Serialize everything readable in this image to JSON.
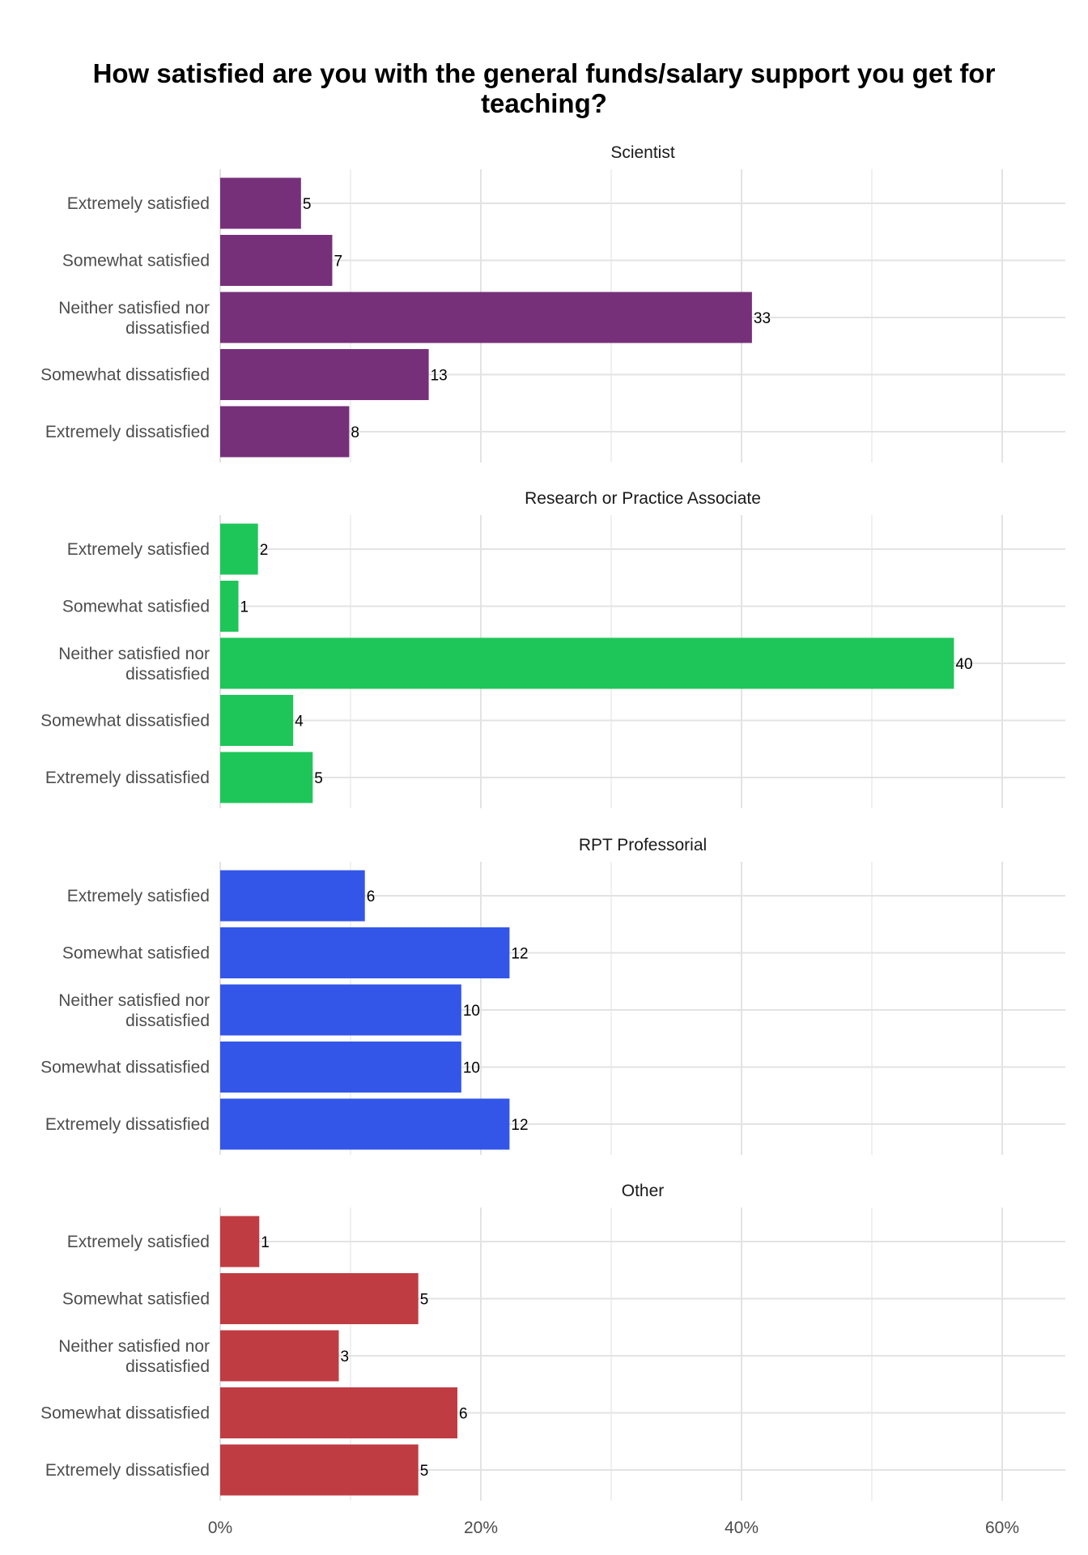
{
  "chart_data": {
    "type": "bar",
    "orientation": "horizontal",
    "title_lines": [
      "How satisfied are you with the general funds/salary support you get for",
      "teaching?"
    ],
    "categories": [
      "Extremely satisfied",
      "Somewhat satisfied",
      "Neither satisfied nor dissatisfied",
      "Somewhat dissatisfied",
      "Extremely dissatisfied"
    ],
    "category_label_lines": [
      [
        "Extremely satisfied"
      ],
      [
        "Somewhat satisfied"
      ],
      [
        "Neither satisfied nor",
        "dissatisfied"
      ],
      [
        "Somewhat dissatisfied"
      ],
      [
        "Extremely dissatisfied"
      ]
    ],
    "x_axis": {
      "ticks": [
        0,
        20,
        40,
        60
      ],
      "tick_labels": [
        "0%",
        "20%",
        "40%",
        "60%"
      ],
      "xlim": [
        0,
        65
      ],
      "unit": "%"
    },
    "grid": true,
    "legend": "none",
    "panels": [
      {
        "name": "Scientist",
        "color": "#76307A",
        "counts": [
          5,
          7,
          33,
          13,
          8
        ],
        "percent": [
          6.2,
          8.6,
          40.8,
          16.0,
          9.9
        ]
      },
      {
        "name": "Research or Practice Associate",
        "color": "#1EC65A",
        "counts": [
          2,
          1,
          40,
          4,
          5
        ],
        "percent": [
          2.9,
          1.4,
          56.3,
          5.6,
          7.1
        ]
      },
      {
        "name": "RPT Professorial",
        "color": "#3356E8",
        "counts": [
          6,
          12,
          10,
          10,
          12
        ],
        "percent": [
          11.1,
          22.2,
          18.5,
          18.5,
          22.2
        ]
      },
      {
        "name": "Other",
        "color": "#C03C43",
        "counts": [
          1,
          5,
          3,
          6,
          5
        ],
        "percent": [
          3.0,
          15.2,
          9.1,
          18.2,
          15.2
        ]
      }
    ]
  }
}
